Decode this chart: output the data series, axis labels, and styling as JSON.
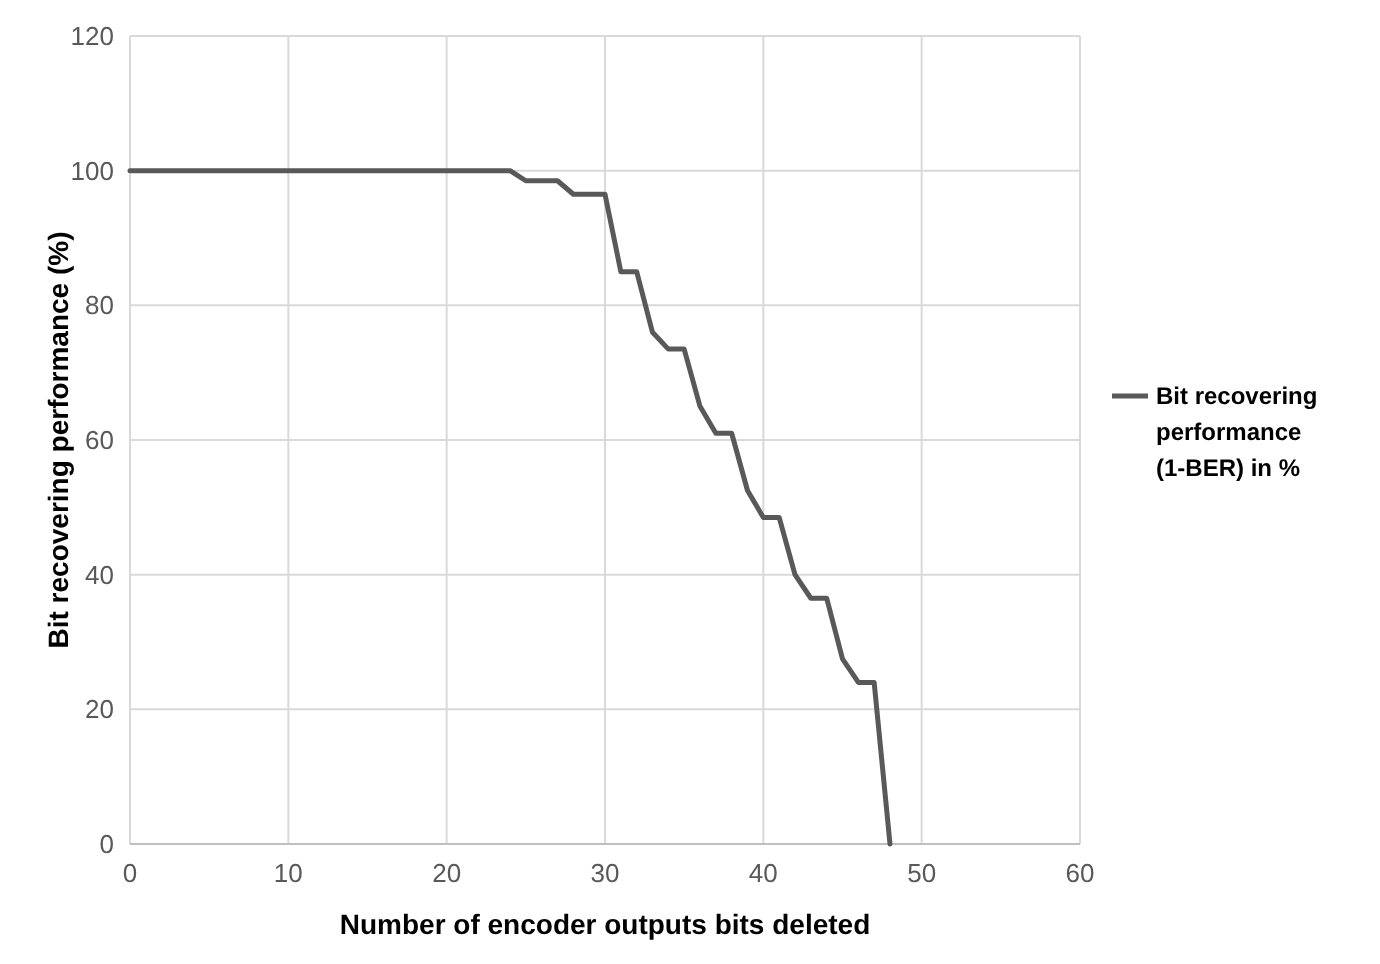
{
  "chart_data": {
    "type": "line",
    "xlabel": "Number of encoder outputs bits deleted",
    "ylabel": "Bit recovering performance (%)",
    "x": [
      0,
      24,
      25,
      26,
      27,
      28,
      29,
      30,
      31,
      32,
      33,
      34,
      35,
      36,
      37,
      38,
      39,
      40,
      41,
      42,
      43,
      44,
      45,
      46,
      47,
      48
    ],
    "series": [
      {
        "name": "Bit recovering performance (1-BER) in %",
        "color": "#595959",
        "values": [
          100,
          100,
          98.5,
          98.5,
          98.5,
          96.5,
          96.5,
          96.5,
          85,
          85,
          76,
          73.5,
          73.5,
          65,
          61,
          61,
          52.5,
          48.5,
          48.5,
          40,
          36.5,
          36.5,
          27.5,
          24,
          24,
          0
        ]
      }
    ],
    "xlim": [
      0,
      60
    ],
    "xticks": [
      0,
      10,
      20,
      30,
      40,
      50,
      60
    ],
    "ylim": [
      0,
      120
    ],
    "yticks": [
      0,
      20,
      40,
      60,
      80,
      100,
      120
    ],
    "grid": true,
    "legend": "right",
    "marker": "none",
    "line_style": "solid"
  }
}
